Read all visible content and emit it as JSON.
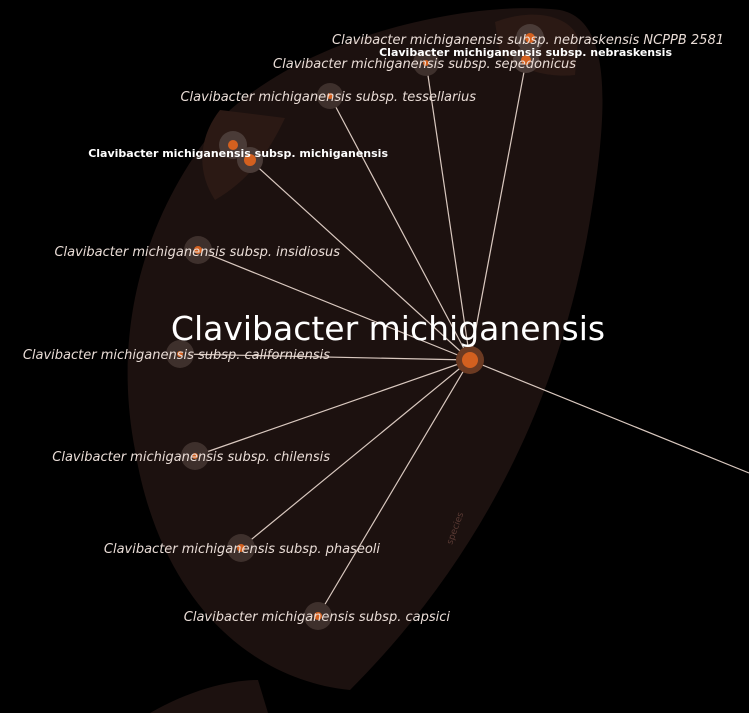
{
  "root": {
    "label": "Clavibacter michiganensis"
  },
  "group_label": "species",
  "colors": {
    "background": "#000000",
    "region": "#1c110f",
    "sub_region": "#2b1914",
    "node": "#d3601f",
    "node_halo": "#4a3b37",
    "edge": "#d9c8bf"
  },
  "nodes": [
    {
      "id": "nebraskensis-ncppb",
      "label": "Clavibacter michiganensis subsp. nebraskensis NCPPB 2581",
      "style": "italic"
    },
    {
      "id": "nebraskensis",
      "label": "Clavibacter michiganensis subsp. nebraskensis",
      "style": "bold"
    },
    {
      "id": "sepedonicus",
      "label": "Clavibacter michiganensis subsp. sepedonicus",
      "style": "italic"
    },
    {
      "id": "tessellarius",
      "label": "Clavibacter michiganensis subsp. tessellarius",
      "style": "italic"
    },
    {
      "id": "michiganensis",
      "label": "Clavibacter michiganensis subsp. michiganensis",
      "style": "bold"
    },
    {
      "id": "insidiosus",
      "label": "Clavibacter michiganensis subsp. insidiosus",
      "style": "italic"
    },
    {
      "id": "californiensis",
      "label": "Clavibacter michiganensis subsp. californiensis",
      "style": "italic"
    },
    {
      "id": "chilensis",
      "label": "Clavibacter michiganensis subsp. chilensis",
      "style": "italic"
    },
    {
      "id": "phaseoli",
      "label": "Clavibacter michiganensis subsp. phaseoli",
      "style": "italic"
    },
    {
      "id": "capsici",
      "label": "Clavibacter michiganensis subsp. capsici",
      "style": "italic"
    }
  ]
}
